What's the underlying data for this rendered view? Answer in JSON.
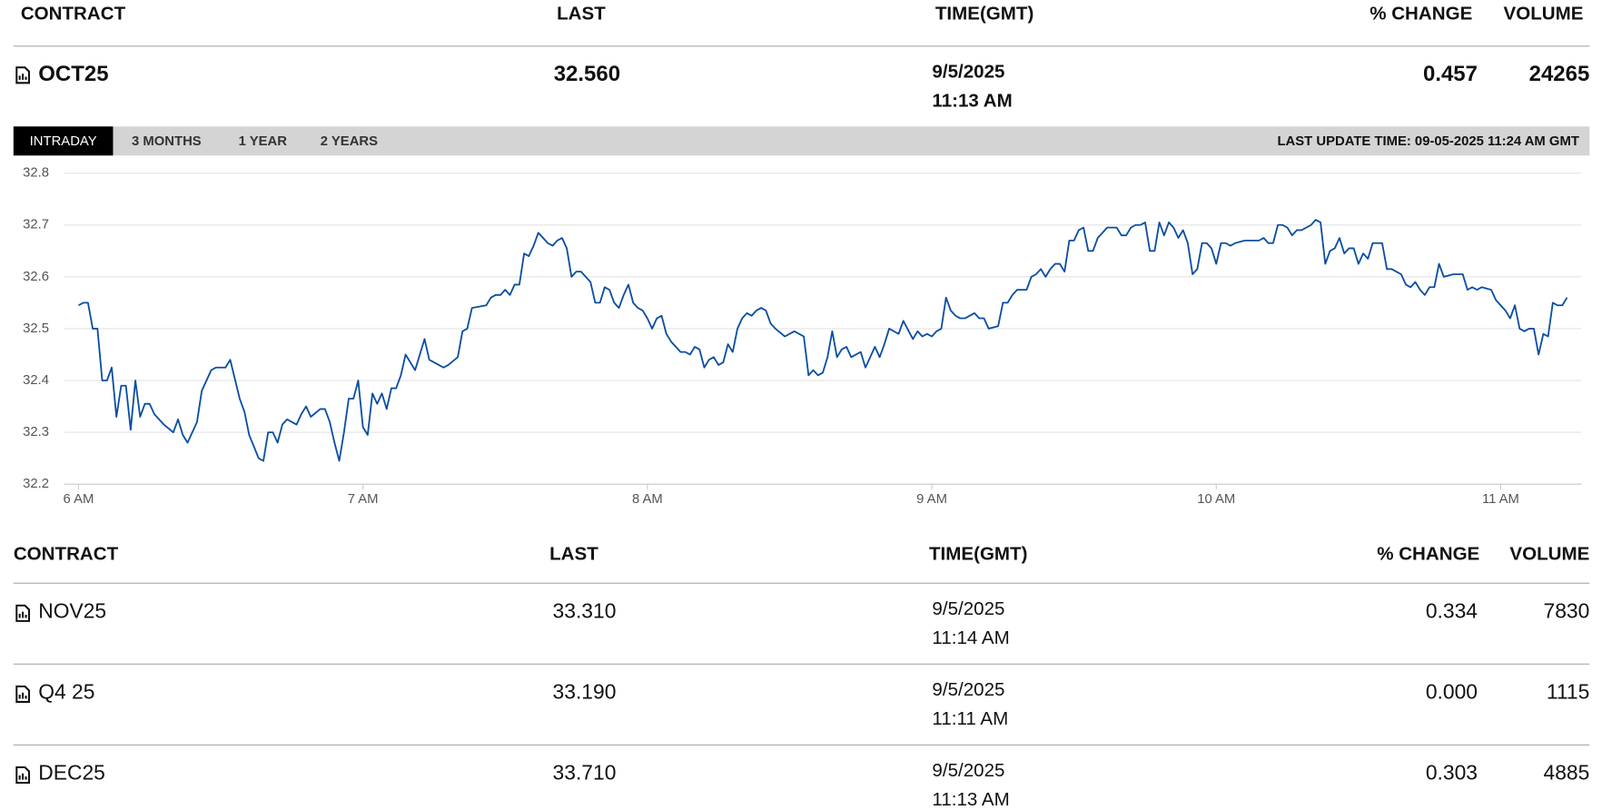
{
  "header": {
    "columns": [
      "CONTRACT",
      "LAST",
      "TIME(GMT)",
      "% CHANGE",
      "VOLUME"
    ]
  },
  "featured": {
    "contract": "OCT25",
    "last": "32.560",
    "date": "9/5/2025",
    "time": "11:13 AM",
    "change": "0.457",
    "volume": "24265"
  },
  "tabs": [
    "INTRADAY",
    "3 MONTHS",
    "1 YEAR",
    "2 YEARS"
  ],
  "last_update": "LAST UPDATE TIME: 09-05-2025 11:24 AM GMT",
  "chart_data": {
    "type": "line",
    "color": "#0b4ea2",
    "grid": true,
    "x": [
      0,
      1,
      2,
      3,
      4,
      5,
      6,
      7,
      8,
      9,
      10,
      11,
      12,
      13,
      14,
      15,
      16,
      18,
      20,
      21,
      22,
      23,
      25,
      26,
      27,
      28,
      29,
      31,
      32,
      34,
      35,
      36,
      38,
      39,
      40,
      41,
      42,
      43,
      44,
      46,
      47,
      48,
      49,
      51,
      52,
      53,
      54,
      55,
      56,
      57,
      58,
      59,
      60,
      61,
      62,
      63,
      64,
      65,
      66,
      67,
      68,
      69,
      71,
      73,
      74,
      76,
      77,
      78,
      80,
      81,
      82,
      83,
      86,
      87,
      88,
      89,
      90,
      91,
      92,
      93,
      94,
      95,
      96,
      97,
      99,
      100,
      101,
      102,
      103,
      104,
      105,
      106,
      107,
      108,
      109,
      110,
      111,
      112,
      113,
      114,
      115,
      116,
      117,
      118,
      119,
      120,
      121,
      122,
      123,
      124,
      125,
      126,
      127,
      128,
      129,
      130,
      131,
      132,
      133,
      134,
      135,
      136,
      137,
      138,
      139,
      140,
      141,
      142,
      143,
      144,
      145,
      146,
      147,
      149,
      150,
      151,
      152,
      153,
      154,
      155,
      156,
      157,
      158,
      159,
      160,
      161,
      162,
      163,
      164,
      165,
      166,
      167,
      168,
      169,
      170,
      171,
      173,
      174,
      176,
      177,
      178,
      179,
      180,
      181,
      182,
      183,
      184,
      185,
      186,
      187,
      188,
      189,
      190,
      191,
      192,
      194,
      195,
      196,
      197,
      198,
      200,
      201,
      202,
      203,
      204,
      205,
      206,
      207,
      208,
      209,
      210,
      211,
      212,
      213,
      214,
      215,
      216,
      217,
      218,
      219,
      220,
      221,
      222,
      223,
      224,
      225,
      226,
      227,
      228,
      229,
      230,
      231,
      232,
      233,
      234,
      235,
      236,
      237,
      238,
      239,
      240,
      241,
      242,
      243,
      244,
      246,
      248,
      249,
      250,
      251,
      252,
      253,
      254,
      255,
      256,
      257,
      258,
      259,
      260,
      261,
      262,
      263,
      264,
      265,
      266,
      267,
      268,
      269,
      270,
      271,
      272,
      273,
      275,
      276,
      277,
      278,
      279,
      280,
      281,
      282,
      283,
      284,
      285,
      286,
      287,
      288,
      290,
      292,
      293,
      294,
      295,
      296,
      298,
      299,
      300,
      301,
      302,
      303,
      304,
      305,
      306,
      307,
      308,
      309,
      310,
      311,
      312,
      313,
      314
    ],
    "values": [
      32.545,
      32.55,
      32.55,
      32.5,
      32.5,
      32.4,
      32.4,
      32.425,
      32.33,
      32.39,
      32.39,
      32.305,
      32.4,
      32.33,
      32.355,
      32.355,
      32.335,
      32.315,
      32.3,
      32.325,
      32.295,
      32.28,
      32.32,
      32.38,
      32.4,
      32.42,
      32.425,
      32.425,
      32.44,
      32.365,
      32.34,
      32.295,
      32.25,
      32.245,
      32.3,
      32.3,
      32.28,
      32.315,
      32.325,
      32.315,
      32.335,
      32.35,
      32.33,
      32.345,
      32.345,
      32.32,
      32.28,
      32.245,
      32.3,
      32.365,
      32.365,
      32.4,
      32.31,
      32.295,
      32.375,
      32.355,
      32.375,
      32.345,
      32.385,
      32.385,
      32.41,
      32.45,
      32.42,
      32.48,
      32.44,
      32.43,
      32.425,
      32.43,
      32.445,
      32.495,
      32.5,
      32.54,
      32.545,
      32.56,
      32.565,
      32.565,
      32.575,
      32.565,
      32.585,
      32.585,
      32.645,
      32.64,
      32.66,
      32.685,
      32.665,
      32.66,
      32.67,
      32.675,
      32.655,
      32.6,
      32.61,
      32.61,
      32.6,
      32.59,
      32.55,
      32.55,
      32.58,
      32.575,
      32.55,
      32.54,
      32.565,
      32.585,
      32.55,
      32.54,
      32.535,
      32.52,
      32.5,
      32.52,
      32.525,
      32.49,
      32.475,
      32.465,
      32.455,
      32.455,
      32.45,
      32.465,
      32.46,
      32.425,
      32.44,
      32.445,
      32.43,
      32.435,
      32.47,
      32.455,
      32.5,
      32.52,
      32.53,
      32.525,
      32.535,
      32.54,
      32.535,
      32.51,
      32.5,
      32.485,
      32.49,
      32.495,
      32.49,
      32.485,
      32.41,
      32.42,
      32.41,
      32.415,
      32.445,
      32.495,
      32.445,
      32.46,
      32.465,
      32.445,
      32.45,
      32.455,
      32.425,
      32.445,
      32.465,
      32.445,
      32.47,
      32.5,
      32.49,
      32.515,
      32.48,
      32.495,
      32.485,
      32.49,
      32.485,
      32.495,
      32.5,
      32.56,
      32.535,
      32.525,
      32.52,
      32.52,
      32.525,
      32.53,
      32.52,
      32.52,
      32.5,
      32.505,
      32.55,
      32.55,
      32.565,
      32.575,
      32.575,
      32.6,
      32.605,
      32.615,
      32.6,
      32.615,
      32.625,
      32.625,
      32.61,
      32.67,
      32.67,
      32.69,
      32.695,
      32.65,
      32.65,
      32.675,
      32.685,
      32.695,
      32.695,
      32.695,
      32.68,
      32.68,
      32.695,
      32.7,
      32.7,
      32.705,
      32.65,
      32.65,
      32.705,
      32.68,
      32.705,
      32.695,
      32.675,
      32.69,
      32.665,
      32.605,
      32.615,
      32.665,
      32.665,
      32.655,
      32.625,
      32.665,
      32.665,
      32.66,
      32.665,
      32.67,
      32.67,
      32.67,
      32.675,
      32.665,
      32.665,
      32.7,
      32.7,
      32.695,
      32.68,
      32.69,
      32.69,
      32.695,
      32.7,
      32.71,
      32.705,
      32.625,
      32.65,
      32.655,
      32.675,
      32.645,
      32.655,
      32.655,
      32.625,
      32.645,
      32.635,
      32.665,
      32.665,
      32.615,
      32.615,
      32.61,
      32.605,
      32.585,
      32.58,
      32.59,
      32.575,
      32.565,
      32.58,
      32.58,
      32.625,
      32.6,
      32.605,
      32.605,
      32.575,
      32.58,
      32.575,
      32.58,
      32.575,
      32.555,
      32.545,
      32.535,
      32.52,
      32.545,
      32.5,
      32.495,
      32.5,
      32.5,
      32.45,
      32.49,
      32.485,
      32.55,
      32.545,
      32.545,
      32.56
    ],
    "xlim": [
      -3,
      317
    ],
    "xticks": [
      {
        "value": 0,
        "label": "6 AM"
      },
      {
        "value": 60,
        "label": "7 AM"
      },
      {
        "value": 120,
        "label": "8 AM"
      },
      {
        "value": 180,
        "label": "9 AM"
      },
      {
        "value": 240,
        "label": "10 AM"
      },
      {
        "value": 300,
        "label": "11 AM"
      }
    ],
    "ylim": [
      32.2,
      32.8
    ],
    "yticks": [
      32.2,
      32.3,
      32.4,
      32.5,
      32.6,
      32.7,
      32.8
    ]
  },
  "table": {
    "columns": [
      "CONTRACT",
      "LAST",
      "TIME(GMT)",
      "% CHANGE",
      "VOLUME"
    ],
    "rows": [
      [
        "NOV25",
        "33.310",
        "9/5/2025",
        "11:14 AM",
        "0.334",
        "7830"
      ],
      [
        "Q4 25",
        "33.190",
        "9/5/2025",
        "11:11 AM",
        "0.000",
        "1115"
      ],
      [
        "DEC25",
        "33.710",
        "9/5/2025",
        "11:13 AM",
        "0.303",
        "4885"
      ]
    ]
  }
}
